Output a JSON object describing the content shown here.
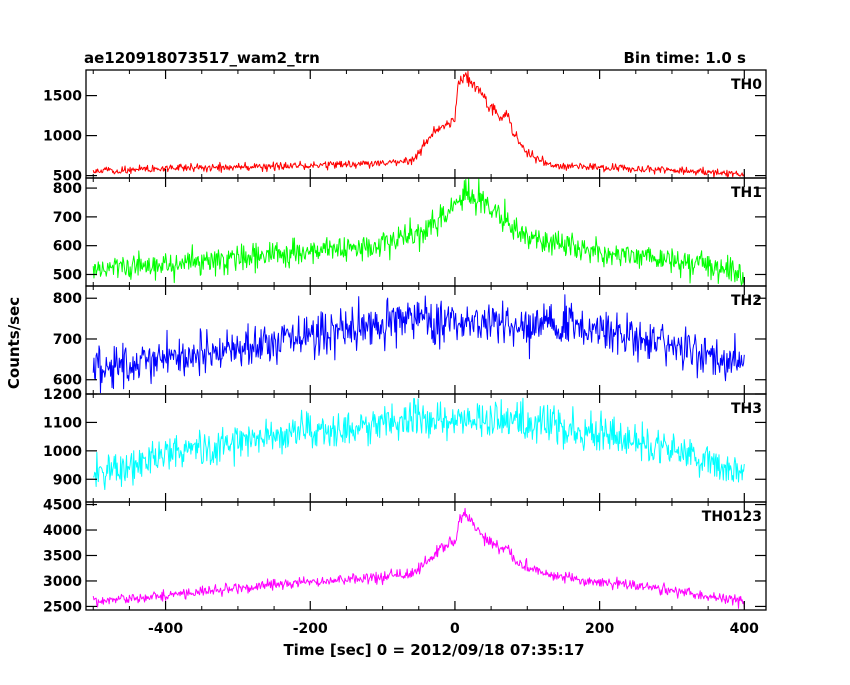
{
  "header": {
    "title": "ae120918073517_wam2_trn",
    "bin_time": "Bin time: 1.0 s"
  },
  "chart_data": {
    "type": "line",
    "title": "ae120918073517_wam2_trn",
    "subtitle": "Bin time: 1.0 s",
    "xlabel": "Time [sec] 0 = 2012/09/18 07:35:17",
    "ylabel": "Counts/sec",
    "xlim": [
      -510,
      430
    ],
    "x_ticks": [
      -400,
      -200,
      0,
      200,
      400
    ],
    "grid": false,
    "panels": [
      {
        "name": "TH0",
        "color": "#ff0000",
        "ylim": [
          470,
          1820
        ],
        "y_ticks": [
          500,
          1000,
          1500
        ],
        "x": [
          -500,
          -450,
          -400,
          -350,
          -300,
          -250,
          -200,
          -150,
          -100,
          -60,
          -45,
          -30,
          -10,
          0,
          5,
          15,
          25,
          35,
          45,
          55,
          65,
          72,
          80,
          90,
          100,
          110,
          130,
          160,
          200,
          250,
          300,
          350,
          400
        ],
        "y": [
          560,
          570,
          590,
          600,
          610,
          615,
          625,
          640,
          655,
          680,
          850,
          1050,
          1150,
          1200,
          1690,
          1750,
          1650,
          1550,
          1400,
          1330,
          1200,
          1300,
          1050,
          900,
          780,
          720,
          640,
          615,
          600,
          580,
          560,
          540,
          520
        ]
      },
      {
        "name": "TH1",
        "color": "#00ff00",
        "ylim": [
          460,
          835
        ],
        "y_ticks": [
          500,
          600,
          700,
          800
        ],
        "x": [
          -500,
          -450,
          -400,
          -350,
          -300,
          -250,
          -200,
          -150,
          -100,
          -50,
          -20,
          0,
          15,
          30,
          50,
          70,
          90,
          120,
          160,
          200,
          250,
          300,
          350,
          400
        ],
        "y": [
          520,
          530,
          535,
          545,
          555,
          570,
          580,
          590,
          600,
          640,
          700,
          740,
          790,
          760,
          730,
          690,
          650,
          620,
          600,
          580,
          565,
          550,
          530,
          510
        ]
      },
      {
        "name": "TH2",
        "color": "#0000ff",
        "ylim": [
          565,
          830
        ],
        "y_ticks": [
          600,
          700,
          800
        ],
        "x": [
          -500,
          -450,
          -400,
          -350,
          -300,
          -250,
          -200,
          -150,
          -100,
          -50,
          0,
          50,
          100,
          150,
          200,
          250,
          300,
          350,
          400
        ],
        "y": [
          630,
          640,
          650,
          660,
          670,
          690,
          715,
          725,
          735,
          745,
          745,
          740,
          735,
          730,
          720,
          700,
          680,
          660,
          640
        ]
      },
      {
        "name": "TH3",
        "color": "#00ffff",
        "ylim": [
          820,
          1200
        ],
        "y_ticks": [
          900,
          1000,
          1100,
          1200
        ],
        "x": [
          -500,
          -450,
          -400,
          -350,
          -300,
          -250,
          -200,
          -150,
          -100,
          -50,
          0,
          50,
          100,
          150,
          200,
          250,
          300,
          350,
          400
        ],
        "y": [
          920,
          950,
          990,
          1010,
          1030,
          1050,
          1070,
          1085,
          1100,
          1110,
          1115,
          1110,
          1100,
          1080,
          1060,
          1030,
          1000,
          970,
          930
        ]
      },
      {
        "name": "TH0123",
        "color": "#ff00ff",
        "ylim": [
          2430,
          4550
        ],
        "y_ticks": [
          2500,
          3000,
          3500,
          4000,
          4500
        ],
        "x": [
          -500,
          -450,
          -400,
          -350,
          -300,
          -250,
          -200,
          -150,
          -100,
          -60,
          -40,
          -20,
          0,
          5,
          15,
          25,
          40,
          55,
          65,
          72,
          80,
          95,
          110,
          140,
          180,
          220,
          260,
          300,
          350,
          400
        ],
        "y": [
          2600,
          2650,
          2720,
          2780,
          2850,
          2920,
          2980,
          3020,
          3070,
          3130,
          3350,
          3650,
          3750,
          4150,
          4350,
          4100,
          3850,
          3750,
          3600,
          3700,
          3450,
          3300,
          3200,
          3100,
          3000,
          2960,
          2900,
          2820,
          2700,
          2600
        ]
      }
    ]
  }
}
